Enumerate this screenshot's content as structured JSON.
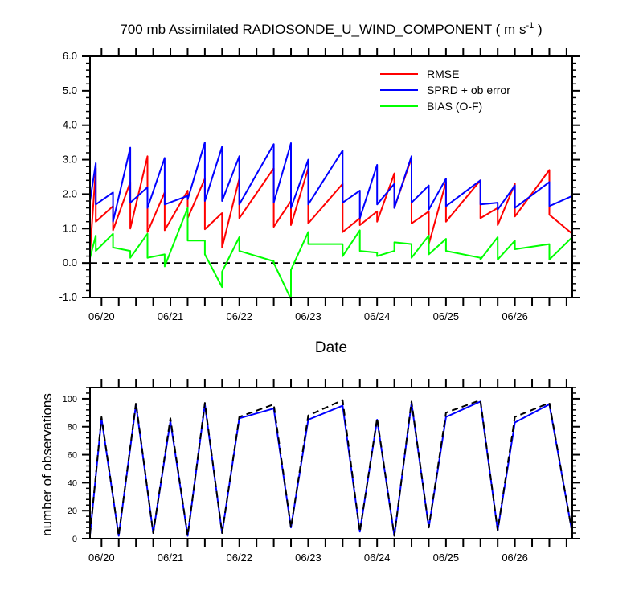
{
  "chart_data": [
    {
      "type": "line",
      "title": "700 mb Assimilated RADIOSONDE_U_WIND_COMPONENT ( m s",
      "title_sup": "-1",
      "title_end": " )",
      "xlabel": "Date",
      "ylabel": "",
      "ylim": [
        -1.0,
        6.0
      ],
      "xlim": [
        -0.167,
        6.833
      ],
      "yticks": [
        "-1.0",
        "0.0",
        "1.0",
        "2.0",
        "3.0",
        "4.0",
        "5.0",
        "6.0"
      ],
      "xticks": [
        {
          "x": 0,
          "label": "06/20"
        },
        {
          "x": 1,
          "label": "06/21"
        },
        {
          "x": 2,
          "label": "06/22"
        },
        {
          "x": 3,
          "label": "06/23"
        },
        {
          "x": 4,
          "label": "06/24"
        },
        {
          "x": 5,
          "label": "06/25"
        },
        {
          "x": 6,
          "label": "06/26"
        }
      ],
      "grid": false,
      "legend_position": "top-right",
      "reference_line": 0.0,
      "series": [
        {
          "name": "RMSE",
          "color": "#ff0000",
          "points": [
            [
              -0.167,
              0.3
            ],
            [
              -0.083,
              2.75
            ],
            [
              -0.083,
              1.2
            ],
            [
              0.167,
              1.65
            ],
            [
              0.167,
              0.95
            ],
            [
              0.417,
              2.35
            ],
            [
              0.417,
              1.0
            ],
            [
              0.667,
              3.1
            ],
            [
              0.667,
              0.9
            ],
            [
              0.917,
              2.05
            ],
            [
              0.917,
              0.95
            ],
            [
              1.25,
              2.1
            ],
            [
              1.25,
              1.3
            ],
            [
              1.5,
              2.45
            ],
            [
              1.5,
              0.98
            ],
            [
              1.75,
              1.45
            ],
            [
              1.75,
              0.45
            ],
            [
              2.0,
              2.45
            ],
            [
              2.0,
              1.3
            ],
            [
              2.5,
              2.75
            ],
            [
              2.5,
              1.05
            ],
            [
              2.75,
              1.8
            ],
            [
              2.75,
              1.1
            ],
            [
              3.0,
              2.75
            ],
            [
              3.0,
              1.15
            ],
            [
              3.5,
              2.3
            ],
            [
              3.5,
              0.9
            ],
            [
              3.75,
              1.3
            ],
            [
              3.75,
              1.1
            ],
            [
              4.0,
              1.5
            ],
            [
              4.0,
              1.2
            ],
            [
              4.25,
              2.6
            ],
            [
              4.25,
              1.6
            ],
            [
              4.5,
              3.05
            ],
            [
              4.5,
              1.15
            ],
            [
              4.75,
              1.5
            ],
            [
              4.75,
              0.55
            ],
            [
              5.0,
              2.35
            ],
            [
              5.0,
              1.2
            ],
            [
              5.5,
              2.4
            ],
            [
              5.5,
              1.3
            ],
            [
              5.75,
              1.6
            ],
            [
              5.75,
              1.1
            ],
            [
              6.0,
              2.3
            ],
            [
              6.0,
              1.35
            ],
            [
              6.5,
              2.7
            ],
            [
              6.5,
              1.4
            ],
            [
              6.833,
              0.85
            ]
          ]
        },
        {
          "name": "SPRD + ob error",
          "color": "#0000ff",
          "points": [
            [
              -0.167,
              1.8
            ],
            [
              -0.083,
              2.9
            ],
            [
              -0.083,
              1.7
            ],
            [
              0.167,
              2.05
            ],
            [
              0.167,
              1.2
            ],
            [
              0.417,
              3.35
            ],
            [
              0.417,
              1.75
            ],
            [
              0.667,
              2.2
            ],
            [
              0.667,
              1.6
            ],
            [
              0.917,
              3.05
            ],
            [
              0.917,
              1.7
            ],
            [
              1.25,
              1.95
            ],
            [
              1.25,
              1.85
            ],
            [
              1.5,
              3.5
            ],
            [
              1.5,
              1.8
            ],
            [
              1.75,
              3.38
            ],
            [
              1.75,
              1.8
            ],
            [
              2.0,
              3.1
            ],
            [
              2.0,
              1.7
            ],
            [
              2.5,
              3.45
            ],
            [
              2.5,
              1.75
            ],
            [
              2.75,
              3.48
            ],
            [
              2.75,
              1.6
            ],
            [
              3.0,
              3.0
            ],
            [
              3.0,
              1.7
            ],
            [
              3.5,
              3.27
            ],
            [
              3.5,
              1.75
            ],
            [
              3.75,
              2.1
            ],
            [
              3.75,
              1.3
            ],
            [
              4.0,
              2.85
            ],
            [
              4.0,
              1.7
            ],
            [
              4.25,
              2.3
            ],
            [
              4.25,
              1.6
            ],
            [
              4.5,
              3.1
            ],
            [
              4.5,
              1.75
            ],
            [
              4.75,
              2.25
            ],
            [
              4.75,
              1.55
            ],
            [
              5.0,
              2.45
            ],
            [
              5.0,
              1.65
            ],
            [
              5.5,
              2.4
            ],
            [
              5.5,
              1.7
            ],
            [
              5.75,
              1.75
            ],
            [
              5.75,
              1.55
            ],
            [
              6.0,
              2.25
            ],
            [
              6.0,
              1.6
            ],
            [
              6.5,
              2.35
            ],
            [
              6.5,
              1.65
            ],
            [
              6.833,
              1.95
            ]
          ]
        },
        {
          "name": "BIAS (O-F)",
          "color": "#00ff00",
          "points": [
            [
              -0.167,
              0.15
            ],
            [
              -0.083,
              0.8
            ],
            [
              -0.083,
              0.35
            ],
            [
              0.167,
              0.85
            ],
            [
              0.167,
              0.45
            ],
            [
              0.417,
              0.35
            ],
            [
              0.417,
              0.15
            ],
            [
              0.667,
              0.85
            ],
            [
              0.667,
              0.15
            ],
            [
              0.917,
              0.25
            ],
            [
              0.917,
              -0.1
            ],
            [
              1.25,
              1.6
            ],
            [
              1.25,
              0.65
            ],
            [
              1.5,
              0.65
            ],
            [
              1.5,
              0.25
            ],
            [
              1.75,
              -0.7
            ],
            [
              1.75,
              -0.25
            ],
            [
              2.0,
              0.75
            ],
            [
              2.0,
              0.35
            ],
            [
              2.5,
              0.05
            ],
            [
              2.5,
              0.0
            ],
            [
              2.75,
              -1.05
            ],
            [
              2.75,
              -0.2
            ],
            [
              3.0,
              0.9
            ],
            [
              3.0,
              0.55
            ],
            [
              3.5,
              0.55
            ],
            [
              3.5,
              0.2
            ],
            [
              3.75,
              0.95
            ],
            [
              3.75,
              0.35
            ],
            [
              4.0,
              0.3
            ],
            [
              4.0,
              0.2
            ],
            [
              4.25,
              0.35
            ],
            [
              4.25,
              0.6
            ],
            [
              4.5,
              0.55
            ],
            [
              4.5,
              0.15
            ],
            [
              4.75,
              0.8
            ],
            [
              4.75,
              0.25
            ],
            [
              5.0,
              0.7
            ],
            [
              5.0,
              0.35
            ],
            [
              5.5,
              0.15
            ],
            [
              5.5,
              0.1
            ],
            [
              5.75,
              0.75
            ],
            [
              5.75,
              0.1
            ],
            [
              6.0,
              0.65
            ],
            [
              6.0,
              0.4
            ],
            [
              6.5,
              0.55
            ],
            [
              6.5,
              0.1
            ],
            [
              6.833,
              0.75
            ]
          ]
        }
      ]
    },
    {
      "type": "line",
      "title": "",
      "xlabel": "",
      "ylabel": "number of observations",
      "ylim": [
        0,
        108
      ],
      "xlim": [
        -0.167,
        6.833
      ],
      "yticks": [
        "0",
        "20",
        "40",
        "60",
        "80",
        "100"
      ],
      "xticks": [
        {
          "x": 0,
          "label": "06/20"
        },
        {
          "x": 1,
          "label": "06/21"
        },
        {
          "x": 2,
          "label": "06/22"
        },
        {
          "x": 3,
          "label": "06/23"
        },
        {
          "x": 4,
          "label": "06/24"
        },
        {
          "x": 5,
          "label": "06/25"
        },
        {
          "x": 6,
          "label": "06/26"
        }
      ],
      "grid": false,
      "series": [
        {
          "color": "#0000ff",
          "style": "solid",
          "points": [
            [
              -0.167,
              3
            ],
            [
              0.0,
              86
            ],
            [
              0.25,
              2
            ],
            [
              0.5,
              96
            ],
            [
              0.75,
              4
            ],
            [
              1.0,
              84
            ],
            [
              1.25,
              2
            ],
            [
              1.5,
              96
            ],
            [
              1.75,
              4
            ],
            [
              2.0,
              86
            ],
            [
              2.5,
              93
            ],
            [
              2.75,
              8
            ],
            [
              3.0,
              85
            ],
            [
              3.5,
              95
            ],
            [
              3.75,
              5
            ],
            [
              4.0,
              85
            ],
            [
              4.25,
              2
            ],
            [
              4.5,
              97
            ],
            [
              4.75,
              8
            ],
            [
              5.0,
              87
            ],
            [
              5.5,
              98
            ],
            [
              5.75,
              6
            ],
            [
              6.0,
              83
            ],
            [
              6.5,
              96
            ],
            [
              6.833,
              4
            ]
          ]
        },
        {
          "color": "#000000",
          "style": "dashed",
          "points": [
            [
              -0.167,
              3
            ],
            [
              0.0,
              87
            ],
            [
              0.25,
              2
            ],
            [
              0.5,
              97
            ],
            [
              0.75,
              4
            ],
            [
              1.0,
              86
            ],
            [
              1.25,
              2
            ],
            [
              1.5,
              97
            ],
            [
              1.75,
              4
            ],
            [
              2.0,
              87
            ],
            [
              2.5,
              96
            ],
            [
              2.75,
              8
            ],
            [
              3.0,
              88
            ],
            [
              3.5,
              99
            ],
            [
              3.75,
              5
            ],
            [
              4.0,
              86
            ],
            [
              4.25,
              2
            ],
            [
              4.5,
              98
            ],
            [
              4.75,
              8
            ],
            [
              5.0,
              90
            ],
            [
              5.5,
              99
            ],
            [
              5.75,
              6
            ],
            [
              6.0,
              87
            ],
            [
              6.5,
              97
            ],
            [
              6.833,
              4
            ]
          ]
        }
      ]
    }
  ]
}
